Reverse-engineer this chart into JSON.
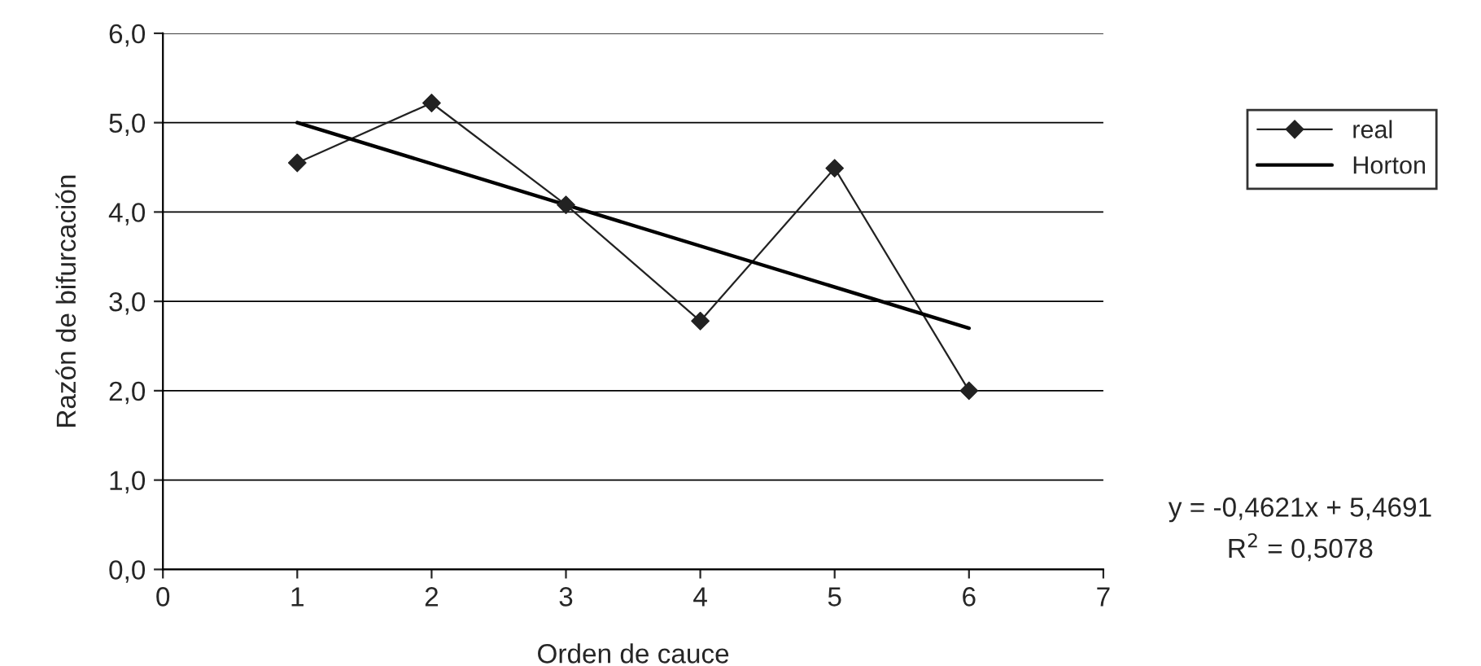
{
  "chart_data": {
    "type": "line",
    "xlabel": "Orden de cauce",
    "ylabel": "Razón de bifurcación",
    "xlim": [
      0,
      7
    ],
    "xticks": [
      0,
      1,
      2,
      3,
      4,
      5,
      6,
      7
    ],
    "ylim": [
      0,
      6
    ],
    "yticks": [
      {
        "value": 0,
        "label": "0,0"
      },
      {
        "value": 1,
        "label": "1,0"
      },
      {
        "value": 2,
        "label": "2,0"
      },
      {
        "value": 3,
        "label": "3,0"
      },
      {
        "value": 4,
        "label": "4,0"
      },
      {
        "value": 5,
        "label": "5,0"
      },
      {
        "value": 6,
        "label": "6,0"
      }
    ],
    "grid": "y",
    "legend": "right",
    "line_style": "solid",
    "series": [
      {
        "name": "real",
        "color": "#222222",
        "marker": "diamond",
        "x": [
          1,
          2,
          3,
          4,
          5,
          6
        ],
        "values": [
          4.55,
          5.22,
          4.08,
          2.78,
          4.49,
          2.0
        ]
      },
      {
        "name": "Horton",
        "color": "#000000",
        "marker": "none",
        "x": [
          1,
          6
        ],
        "values": [
          5.0,
          2.7
        ]
      }
    ],
    "annotations": [
      "y = -0,4621x + 5,4691",
      "R$^{2}$ = 0,5078"
    ]
  }
}
